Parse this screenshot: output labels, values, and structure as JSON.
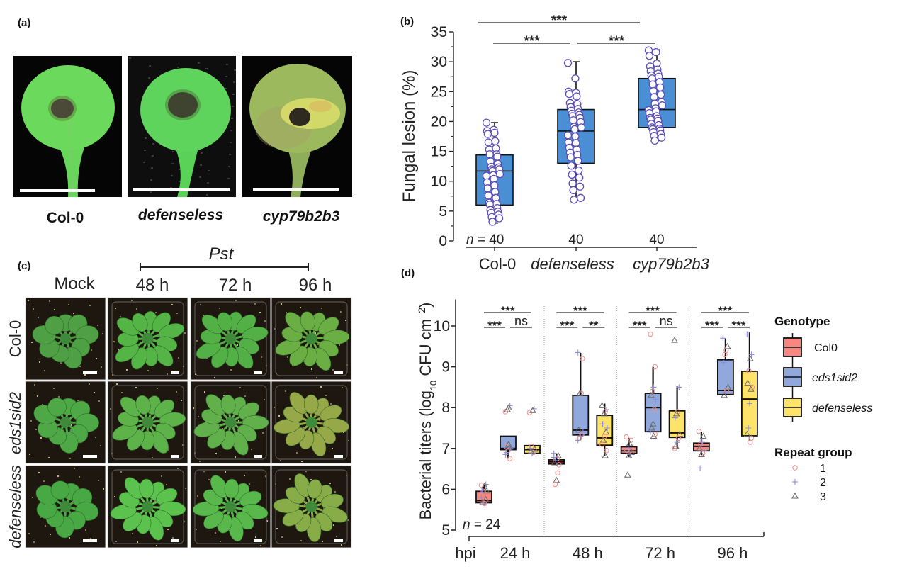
{
  "figure": {
    "panel_labels": {
      "a": "(a)",
      "b": "(b)",
      "c": "(c)",
      "d": "(d)"
    }
  },
  "panel_a": {
    "leaves": [
      {
        "label": "Col-0"
      },
      {
        "label": "defenseless"
      },
      {
        "label": "cyp79b2b3"
      }
    ]
  },
  "panel_c": {
    "treatment_label": "Pst",
    "columns": [
      "Mock",
      "48 h",
      "72 h",
      "96 h"
    ],
    "rows": [
      "Col-0",
      "eds1sid2",
      "defenseless"
    ]
  },
  "chart_data": [
    {
      "panel": "b",
      "type": "box",
      "title": "",
      "xlabel": "",
      "ylabel": "Fungal lesion (%)",
      "ylim": [
        0,
        35
      ],
      "yticks": [
        0,
        5,
        10,
        15,
        20,
        25,
        30,
        35
      ],
      "yticklabels": [
        "0",
        "5",
        "10",
        "15",
        "20",
        "25",
        "30",
        "35"
      ],
      "categories": [
        "Col-0",
        "defenseless",
        "cyp79b2b3"
      ],
      "n_symbol": "n",
      "n_eq": " = ",
      "counts": [
        "40",
        "40",
        "40"
      ],
      "fill_color": "#4a8fd3",
      "point_color": "#5a4cb8",
      "boxes": [
        {
          "q1": 6.0,
          "median": 11.7,
          "q3": 14.4,
          "whisker_low": 3.0,
          "whisker_high": 19.8
        },
        {
          "q1": 13.0,
          "median": 18.4,
          "q3": 22.0,
          "whisker_low": 6.8,
          "whisker_high": 30.0
        },
        {
          "q1": 19.0,
          "median": 22.0,
          "q3": 27.2,
          "whisker_low": 16.8,
          "whisker_high": 32.0
        }
      ],
      "points": [
        [
          19.8,
          18.6,
          18.4,
          18.1,
          17.9,
          16.7,
          16.5,
          15.5,
          15.3,
          14.5,
          14.5,
          14.1,
          13.3,
          12.9,
          12.4,
          12.3,
          12.0,
          12.0,
          11.7,
          11.2,
          11.0,
          10.9,
          10.4,
          9.8,
          9.3,
          8.8,
          8.2,
          7.6,
          7.2,
          6.4,
          6.2,
          6.1,
          5.5,
          5.2,
          4.9,
          4.7,
          4.4,
          4.0,
          3.8,
          3.2
        ],
        [
          29.8,
          27.2,
          25.0,
          24.8,
          24.6,
          24.2,
          23.1,
          22.9,
          22.4,
          22.1,
          21.8,
          21.5,
          21.3,
          21.1,
          20.9,
          20.6,
          20.2,
          19.9,
          19.1,
          19.0,
          18.7,
          17.7,
          17.5,
          16.5,
          16.4,
          15.6,
          15.3,
          14.8,
          14.4,
          14.0,
          13.4,
          12.6,
          11.8,
          11.1,
          10.6,
          9.6,
          9.1,
          8.5,
          7.2,
          6.9
        ],
        [
          31.9,
          31.6,
          31.0,
          29.7,
          29.2,
          28.7,
          28.4,
          28.0,
          27.7,
          27.5,
          27.2,
          26.6,
          26.2,
          25.7,
          25.1,
          24.5,
          24.1,
          23.3,
          23.0,
          22.7,
          22.2,
          21.9,
          21.7,
          21.4,
          20.9,
          20.6,
          20.5,
          20.3,
          20.1,
          19.6,
          19.4,
          19.0,
          18.8,
          18.7,
          18.5,
          18.2,
          17.9,
          17.6,
          17.3,
          16.8
        ]
      ],
      "significance": [
        {
          "pair": [
            0,
            1
          ],
          "label": "***"
        },
        {
          "pair": [
            1,
            2
          ],
          "label": "***"
        },
        {
          "pair": [
            0,
            2
          ],
          "label": "***"
        }
      ]
    },
    {
      "panel": "d",
      "type": "box",
      "title": "",
      "ylabel_parts": {
        "main": "Bacterial titers (log",
        "sub": "10",
        "unit": " CFU cm",
        "sup": "−2",
        "close": ")"
      },
      "ylim": [
        5,
        10.65
      ],
      "yticks": [
        5,
        6,
        7,
        8,
        9,
        10
      ],
      "yticklabels": [
        "5",
        "6",
        "7",
        "8",
        "9",
        "10"
      ],
      "xlabel": "hpi",
      "timepoints": [
        "24 h",
        "48 h",
        "72 h",
        "96 h"
      ],
      "genotypes": [
        "Col0",
        "eds1sid2",
        "defenseless"
      ],
      "genotype_colors": [
        "#f8877f",
        "#90a8dc",
        "#fee36a"
      ],
      "repeat_groups": [
        {
          "label": "1",
          "marker": "circle",
          "color": "#f08a8a"
        },
        {
          "label": "2",
          "marker": "plus",
          "color": "#8c8ce0"
        },
        {
          "label": "3",
          "marker": "triangle",
          "color": "#6a6a6a"
        }
      ],
      "n_label": {
        "symbol": "n",
        "eq": " = ",
        "count": "24"
      },
      "legend": {
        "genotype_title": "Genotype",
        "repeat_title": "Repeat group",
        "position": "right"
      },
      "grid": false,
      "groups": [
        {
          "timepoint": "24 h",
          "boxes": [
            {
              "q1": 5.67,
              "median": 5.72,
              "q3": 5.95,
              "whisker_low": 5.65,
              "whisker_high": 6.12
            },
            {
              "q1": 6.97,
              "median": 7.0,
              "q3": 7.3,
              "whisker_low": 6.75,
              "whisker_high": 7.3
            },
            {
              "q1": 6.88,
              "median": 6.97,
              "q3": 7.07,
              "whisker_low": 6.88,
              "whisker_high": 7.07
            }
          ],
          "points": [
            [
              [
                6.1,
                1
              ],
              [
                6.12,
                2
              ],
              [
                6.08,
                3
              ],
              [
                5.95,
                1
              ],
              [
                5.97,
                2
              ],
              [
                5.96,
                3
              ],
              [
                5.7,
                1
              ],
              [
                5.66,
                2
              ],
              [
                5.68,
                3
              ],
              [
                5.8,
                2
              ],
              [
                5.75,
                3
              ],
              [
                5.65,
                1
              ]
            ],
            [
              [
                7.9,
                1
              ],
              [
                8.05,
                2
              ],
              [
                8.0,
                3
              ],
              [
                7.95,
                3
              ],
              [
                7.05,
                1
              ],
              [
                7.0,
                2
              ],
              [
                7.02,
                3
              ],
              [
                6.95,
                1
              ],
              [
                6.9,
                2
              ],
              [
                6.85,
                2
              ],
              [
                6.75,
                1
              ],
              [
                7.1,
                3
              ]
            ],
            [
              [
                7.88,
                1
              ],
              [
                7.97,
                2
              ],
              [
                7.93,
                3
              ],
              [
                7.05,
                1
              ],
              [
                7.0,
                2
              ],
              [
                6.98,
                3
              ],
              [
                6.9,
                1
              ],
              [
                6.88,
                2
              ],
              [
                6.93,
                3
              ]
            ]
          ],
          "significance": [
            {
              "pair": [
                0,
                2
              ],
              "label": "***"
            },
            {
              "pair": [
                0,
                1
              ],
              "label": "***"
            },
            {
              "pair": [
                1,
                2
              ],
              "label": "ns"
            }
          ]
        },
        {
          "timepoint": "48 h",
          "boxes": [
            {
              "q1": 6.62,
              "median": 6.67,
              "q3": 6.72,
              "whisker_low": 6.58,
              "whisker_high": 6.88
            },
            {
              "q1": 7.33,
              "median": 7.45,
              "q3": 8.3,
              "whisker_low": 7.2,
              "whisker_high": 9.34
            },
            {
              "q1": 7.08,
              "median": 7.26,
              "q3": 7.81,
              "whisker_low": 6.82,
              "whisker_high": 8.1
            }
          ],
          "points": [
            [
              [
                6.88,
                2
              ],
              [
                6.82,
                3
              ],
              [
                6.75,
                1
              ],
              [
                6.7,
                2
              ],
              [
                6.65,
                3
              ],
              [
                6.6,
                1
              ],
              [
                6.4,
                1
              ],
              [
                6.22,
                3
              ],
              [
                6.12,
                1
              ],
              [
                6.78,
                2
              ]
            ],
            [
              [
                9.35,
                2
              ],
              [
                9.2,
                1
              ],
              [
                8.35,
                1
              ],
              [
                8.35,
                3
              ],
              [
                7.45,
                3
              ],
              [
                7.4,
                2
              ],
              [
                7.35,
                1
              ],
              [
                7.3,
                2
              ],
              [
                7.25,
                1
              ],
              [
                7.2,
                2
              ]
            ],
            [
              [
                8.05,
                3
              ],
              [
                7.95,
                2
              ],
              [
                7.9,
                1
              ],
              [
                7.85,
                3
              ],
              [
                7.6,
                2
              ],
              [
                7.5,
                2
              ],
              [
                7.4,
                3
              ],
              [
                7.3,
                1
              ],
              [
                7.2,
                3
              ],
              [
                7.1,
                1
              ],
              [
                6.95,
                1
              ],
              [
                6.82,
                3
              ]
            ]
          ],
          "significance": [
            {
              "pair": [
                0,
                2
              ],
              "label": "***"
            },
            {
              "pair": [
                0,
                1
              ],
              "label": "***"
            },
            {
              "pair": [
                1,
                2
              ],
              "label": "**"
            }
          ]
        },
        {
          "timepoint": "72 h",
          "boxes": [
            {
              "q1": 6.88,
              "median": 6.94,
              "q3": 7.04,
              "whisker_low": 6.79,
              "whisker_high": 7.26
            },
            {
              "q1": 7.41,
              "median": 8.0,
              "q3": 8.35,
              "whisker_low": 7.41,
              "whisker_high": 9.0
            },
            {
              "q1": 7.27,
              "median": 7.38,
              "q3": 7.92,
              "whisker_low": 7.0,
              "whisker_high": 8.52
            }
          ],
          "points": [
            [
              [
                7.28,
                1
              ],
              [
                7.2,
                1
              ],
              [
                7.12,
                3
              ],
              [
                7.0,
                2
              ],
              [
                6.95,
                1
              ],
              [
                6.9,
                3
              ],
              [
                6.85,
                2
              ],
              [
                6.82,
                3
              ],
              [
                6.35,
                3
              ]
            ],
            [
              [
                9.8,
                1
              ],
              [
                9.0,
                1
              ],
              [
                8.5,
                2
              ],
              [
                8.4,
                1
              ],
              [
                8.3,
                3
              ],
              [
                8.2,
                2
              ],
              [
                7.95,
                1
              ],
              [
                7.6,
                3
              ],
              [
                7.5,
                3
              ],
              [
                7.4,
                2
              ],
              [
                7.35,
                1
              ],
              [
                7.3,
                3
              ]
            ],
            [
              [
                9.65,
                3
              ],
              [
                8.5,
                2
              ],
              [
                7.9,
                1
              ],
              [
                7.85,
                3
              ],
              [
                7.75,
                2
              ],
              [
                7.35,
                3
              ],
              [
                7.25,
                1
              ],
              [
                7.15,
                2
              ],
              [
                7.05,
                3
              ],
              [
                7.0,
                1
              ]
            ]
          ],
          "significance": [
            {
              "pair": [
                0,
                2
              ],
              "label": "***"
            },
            {
              "pair": [
                0,
                1
              ],
              "label": "***"
            },
            {
              "pair": [
                1,
                2
              ],
              "label": "ns"
            }
          ]
        },
        {
          "timepoint": "96 h",
          "boxes": [
            {
              "q1": 6.94,
              "median": 7.05,
              "q3": 7.13,
              "whisker_low": 6.84,
              "whisker_high": 7.41
            },
            {
              "q1": 8.32,
              "median": 8.42,
              "q3": 9.17,
              "whisker_low": 8.32,
              "whisker_high": 9.7
            },
            {
              "q1": 7.31,
              "median": 8.21,
              "q3": 8.89,
              "whisker_low": 7.17,
              "whisker_high": 9.84
            }
          ],
          "points": [
            [
              [
                7.42,
                1
              ],
              [
                7.3,
                3
              ],
              [
                7.15,
                2
              ],
              [
                7.1,
                1
              ],
              [
                7.0,
                3
              ],
              [
                6.95,
                2
              ],
              [
                6.88,
                1
              ],
              [
                6.85,
                3
              ],
              [
                6.52,
                2
              ]
            ],
            [
              [
                9.7,
                2
              ],
              [
                9.5,
                3
              ],
              [
                9.4,
                1
              ],
              [
                9.3,
                1
              ],
              [
                9.1,
                2
              ],
              [
                8.5,
                3
              ],
              [
                8.4,
                1
              ],
              [
                8.35,
                2
              ],
              [
                8.3,
                3
              ]
            ],
            [
              [
                9.8,
                2
              ],
              [
                9.3,
                2
              ],
              [
                9.2,
                3
              ],
              [
                8.9,
                1
              ],
              [
                8.6,
                3
              ],
              [
                8.5,
                1
              ],
              [
                8.45,
                3
              ],
              [
                8.1,
                2
              ],
              [
                7.5,
                2
              ],
              [
                7.35,
                3
              ],
              [
                7.25,
                1
              ],
              [
                7.15,
                1
              ]
            ]
          ],
          "significance": [
            {
              "pair": [
                0,
                2
              ],
              "label": "***"
            },
            {
              "pair": [
                0,
                1
              ],
              "label": "***"
            },
            {
              "pair": [
                1,
                2
              ],
              "label": "***"
            }
          ]
        }
      ]
    }
  ]
}
